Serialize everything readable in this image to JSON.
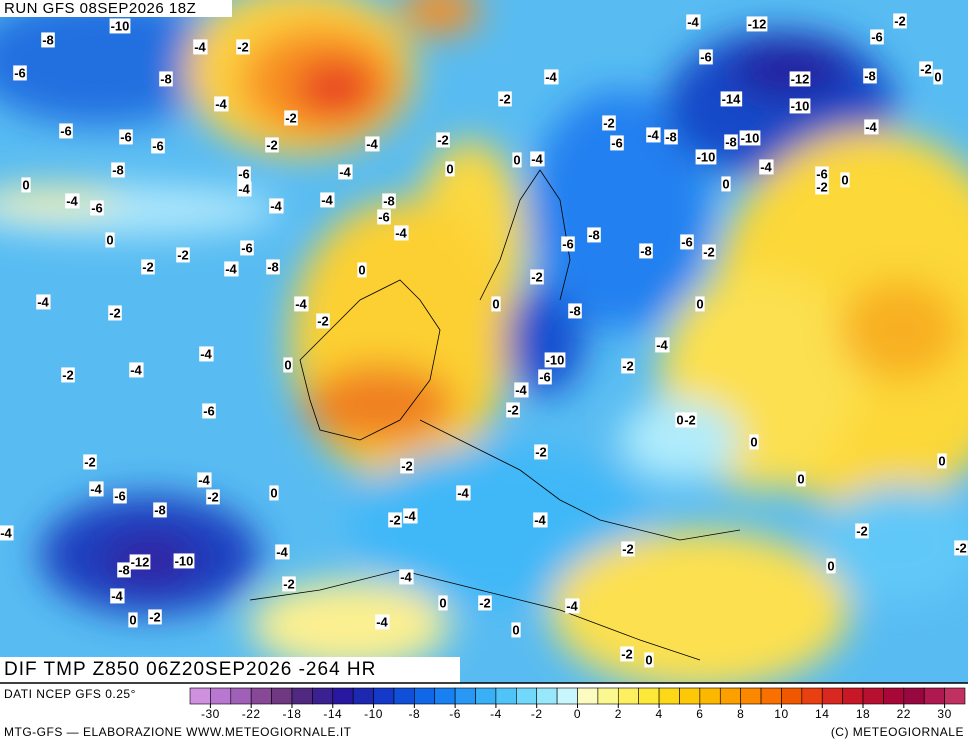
{
  "header": {
    "run": "RUN GFS 08SEP2026 18Z",
    "field": "DIF TMP Z850 06Z20SEP2026 -264 HR",
    "source": "DATI NCEP GFS 0.25°"
  },
  "footer": {
    "left": "MTG-GFS — ELABORAZIONE WWW.METEOGIORNALE.IT",
    "right": "(C) METEOGIORNALE"
  },
  "colorbar": {
    "ticks": [
      -30,
      -22,
      -18,
      -14,
      -10,
      -8,
      -6,
      -4,
      -2,
      0,
      2,
      4,
      6,
      8,
      10,
      14,
      18,
      22,
      30
    ],
    "colors": [
      "#d090e0",
      "#b878d0",
      "#a060b8",
      "#884898",
      "#703880",
      "#502880",
      "#3a2090",
      "#2818a0",
      "#1c28b0",
      "#1438c8",
      "#1050d8",
      "#1068e8",
      "#1880f0",
      "#2898f4",
      "#38b0f6",
      "#50c4f8",
      "#70d8fa",
      "#98e8fc",
      "#c8f6fc",
      "#fcfcc0",
      "#fcf890",
      "#fcf060",
      "#fce838",
      "#fcd818",
      "#fcc808",
      "#fcb800",
      "#fca000",
      "#fc8800",
      "#f87000",
      "#f05800",
      "#e84010",
      "#d82820",
      "#c81828",
      "#b81030",
      "#a80838",
      "#980840",
      "#b01850",
      "#c03060"
    ]
  },
  "contour_labels": [
    -10,
    -8,
    -4,
    -2,
    -6,
    -8,
    -4,
    -2,
    -6,
    -6,
    -6,
    -2,
    -4,
    -2,
    -8,
    -6,
    -4,
    -4,
    0,
    -4,
    -6,
    -4,
    -4,
    -8,
    -6,
    -4,
    0,
    -6,
    -2,
    -2,
    -4,
    -8,
    0,
    -4,
    -2,
    -4,
    -2,
    -4,
    0,
    -2,
    -4,
    -6,
    -2,
    -4,
    -6,
    -4,
    -2,
    0,
    -8,
    -12,
    -10,
    -8,
    -4,
    -4,
    -2,
    0,
    -2,
    -4,
    0,
    -2,
    -4,
    -4,
    0,
    -2,
    0,
    -4,
    -4,
    -12,
    -2,
    -6,
    -6,
    -2,
    0,
    -4,
    -8,
    -12,
    -14,
    -10,
    -2,
    -4,
    -2,
    -4,
    -8,
    -6,
    -8,
    -10,
    -10,
    -4,
    0,
    -6,
    0,
    -2,
    -4,
    0,
    0,
    -8,
    -6,
    -8,
    -6,
    -2,
    -2,
    0,
    0,
    -8,
    -4,
    -10,
    -6,
    -2,
    -4,
    -2,
    -2,
    0,
    -2,
    0,
    0,
    -2,
    -4,
    0,
    -4,
    -2,
    -4,
    -2,
    -2,
    -2,
    0
  ]
}
